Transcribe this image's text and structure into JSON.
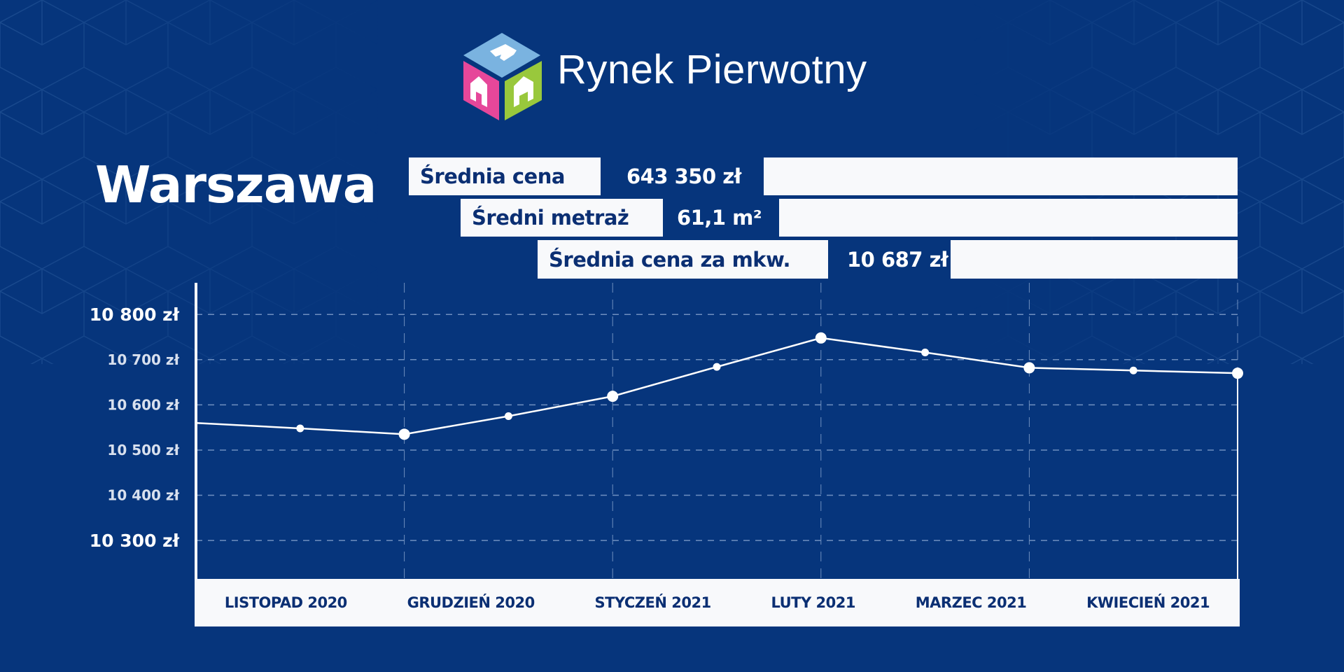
{
  "brand": {
    "name": "Rynek Pierwotny"
  },
  "city": "Warszawa",
  "stats": [
    {
      "label": "Średnia cena",
      "value": "643 350 zł"
    },
    {
      "label": "Średni metraż",
      "value": "61,1 m²"
    },
    {
      "label": "Średnia cena za mkw.",
      "value": "10 687 zł"
    }
  ],
  "colors": {
    "background": "#06357c",
    "panel": "#f8f9fb",
    "text_dark": "#0b2f73",
    "logo_top": "#7ab3e0",
    "logo_left": "#e6479a",
    "logo_right": "#99c83c"
  },
  "chart_data": {
    "type": "line",
    "title": "",
    "xlabel": "",
    "ylabel": "",
    "categories": [
      "LISTOPAD 2020",
      "GRUDZIEŃ 2020",
      "STYCZEŃ 2021",
      "LUTY 2021",
      "MARZEC 2021",
      "KWIECIEŃ 2021"
    ],
    "yticks": [
      {
        "value": 10800,
        "label": "10 800 zł",
        "major": true
      },
      {
        "value": 10700,
        "label": "10 700 zł",
        "major": false
      },
      {
        "value": 10600,
        "label": "10 600 zł",
        "major": false
      },
      {
        "value": 10500,
        "label": "10 500 zł",
        "major": false
      },
      {
        "value": 10400,
        "label": "10 400 zł",
        "major": false
      },
      {
        "value": 10300,
        "label": "10 300 zł",
        "major": true
      }
    ],
    "ylim": [
      10215,
      10870
    ],
    "xlim": [
      0,
      5
    ],
    "grid": true,
    "series": [
      {
        "name": "Średnia cena za mkw.",
        "x": [
          0,
          0.5,
          1,
          1.5,
          2,
          2.5,
          3,
          3.5,
          4,
          4.5,
          5
        ],
        "values": [
          10560,
          10548,
          10535,
          10575,
          10619,
          10684,
          10748,
          10716,
          10682,
          10676,
          10670
        ],
        "major_point": [
          false,
          false,
          true,
          false,
          true,
          false,
          true,
          false,
          true,
          false,
          true
        ]
      }
    ]
  }
}
